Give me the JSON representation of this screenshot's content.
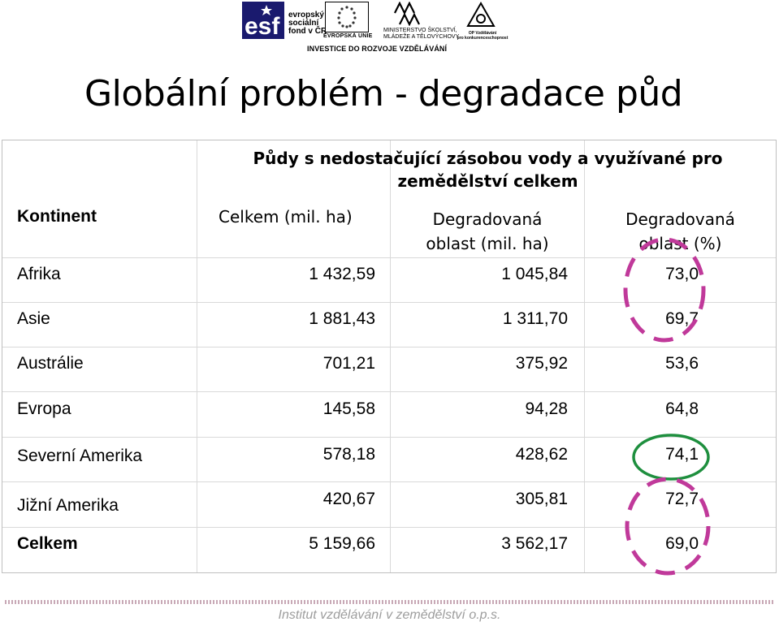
{
  "logos": {
    "esf_text": [
      "evropský",
      "sociální",
      "fond v ČR"
    ],
    "eu_text": "EVROPSKÁ UNIE",
    "msmt_text": [
      "MINISTERSTVO ŠKOLSTVÍ,",
      "MLÁDEŽE A TĚLOVÝCHOVY"
    ],
    "op_text": [
      "OP Vzdělávání",
      "pro konkurenceschopnost"
    ],
    "investice": "INVESTICE DO ROZVOJE VZDĚLÁVÁNÍ",
    "colors": {
      "esf_blue": "#1a1a6e",
      "eu_star": "#333333"
    }
  },
  "title": "Globální problém - degradace půd",
  "table": {
    "group_header": [
      "Půdy s nedostačující zásobou vody a využívané pro",
      "zemědělství celkem"
    ],
    "columns": {
      "continent": "Kontinent",
      "total": "Celkem (mil. ha)",
      "degraded_ha": [
        "Degradovaná",
        "oblast (mil. ha)"
      ],
      "degraded_pct": [
        "Degradovaná",
        "oblast (%)"
      ]
    },
    "rows": [
      {
        "continent": "Afrika",
        "total": "1 432,59",
        "degraded": "1 045,84",
        "pct": "73,0"
      },
      {
        "continent": "Asie",
        "total": "1 881,43",
        "degraded": "1 311,70",
        "pct": "69,7"
      },
      {
        "continent": "Austrálie",
        "total": "701,21",
        "degraded": "375,92",
        "pct": "53,6"
      },
      {
        "continent": "Evropa",
        "total": "145,58",
        "degraded": "94,28",
        "pct": "64,8"
      },
      {
        "continent": "Severní Amerika",
        "total": "578,18",
        "degraded": "428,62",
        "pct": "74,1"
      },
      {
        "continent": "Jižní Amerika",
        "total": "420,67",
        "degraded": "305,81",
        "pct": "72,7"
      }
    ],
    "total_row": {
      "continent": "Celkem",
      "total": "5 159,66",
      "degraded": "3 562,17",
      "pct": "69,0"
    }
  },
  "annotations": {
    "dashed_color": "#c0399a",
    "solid_color": "#1e8f3e"
  },
  "footer": "Institut vzdělávání v zemědělství o.p.s."
}
